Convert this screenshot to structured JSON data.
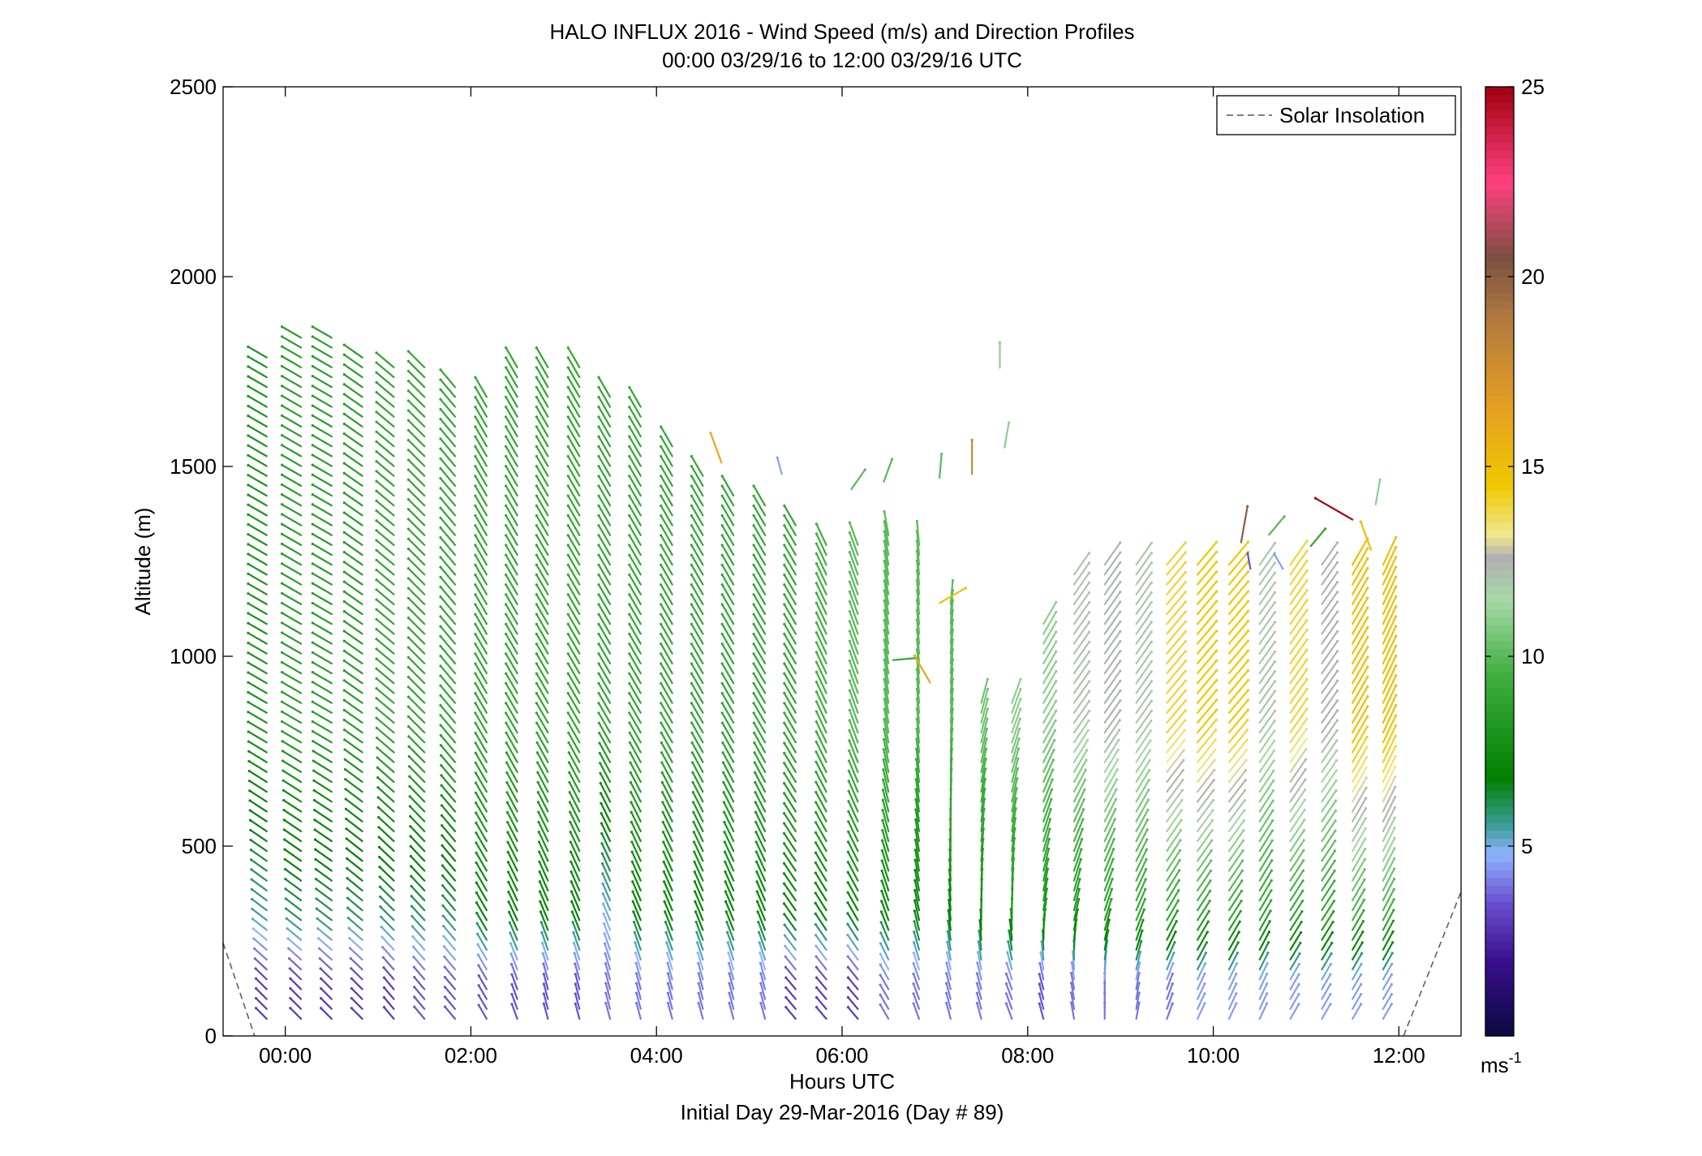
{
  "chart_data": {
    "type": "scatter",
    "title": "HALO INFLUX 2016 - Wind Speed (m/s) and Direction Profiles",
    "subtitle": "00:00 03/29/16 to 12:00 03/29/16  UTC",
    "xlabel": "Hours UTC",
    "xlabel2": "Initial Day 29-Mar-2016 (Day # 89)",
    "ylabel": "Altitude (m)",
    "xlim": [
      -0.67,
      12.67
    ],
    "ylim": [
      0,
      2500
    ],
    "x_ticks": [
      {
        "value": 0,
        "label": "00:00"
      },
      {
        "value": 2,
        "label": "02:00"
      },
      {
        "value": 4,
        "label": "04:00"
      },
      {
        "value": 6,
        "label": "06:00"
      },
      {
        "value": 8,
        "label": "08:00"
      },
      {
        "value": 10,
        "label": "10:00"
      },
      {
        "value": 12,
        "label": "12:00"
      }
    ],
    "y_ticks": [
      {
        "value": 0,
        "label": "0"
      },
      {
        "value": 500,
        "label": "500"
      },
      {
        "value": 1000,
        "label": "1000"
      },
      {
        "value": 1500,
        "label": "1500"
      },
      {
        "value": 2000,
        "label": "2000"
      },
      {
        "value": 2500,
        "label": "2500"
      }
    ],
    "legend": {
      "label": "Solar Insolation",
      "style": "dashed",
      "color": "#808080",
      "placement": "top-right"
    },
    "colorbar": {
      "range": [
        0,
        25
      ],
      "ticks": [
        {
          "value": 5,
          "label": "5"
        },
        {
          "value": 10,
          "label": "10"
        },
        {
          "value": 15,
          "label": "15"
        },
        {
          "value": 20,
          "label": "20"
        },
        {
          "value": 25,
          "label": "25"
        }
      ],
      "unit_label": "ms",
      "unit_exp": "-1",
      "stops": [
        {
          "value": 0,
          "color": "#0a0a40"
        },
        {
          "value": 2,
          "color": "#3a0f8f"
        },
        {
          "value": 3.5,
          "color": "#6a4fd0"
        },
        {
          "value": 4.8,
          "color": "#8fb4ff"
        },
        {
          "value": 5.5,
          "color": "#3f9e9e"
        },
        {
          "value": 6.8,
          "color": "#008000"
        },
        {
          "value": 9.5,
          "color": "#3fae3f"
        },
        {
          "value": 11.5,
          "color": "#a8d8a8"
        },
        {
          "value": 12.6,
          "color": "#b0b0b0"
        },
        {
          "value": 13.2,
          "color": "#f0e890"
        },
        {
          "value": 14.5,
          "color": "#f0c800"
        },
        {
          "value": 16.5,
          "color": "#e6a020"
        },
        {
          "value": 19,
          "color": "#b07840"
        },
        {
          "value": 20.5,
          "color": "#7a5040"
        },
        {
          "value": 22.5,
          "color": "#ff4080"
        },
        {
          "value": 25,
          "color": "#a00010"
        }
      ]
    },
    "solar_insolation": [
      {
        "x": -0.67,
        "y": 245
      },
      {
        "x": -0.33,
        "y": 0
      },
      {
        "x": 12.05,
        "y": 0
      },
      {
        "x": 12.67,
        "y": 380
      }
    ],
    "profiles": [
      {
        "time": -0.2,
        "top": 1810,
        "speed_low": 3,
        "speed_mid": 5.5,
        "speed_high": 8,
        "dir_low": 315,
        "dir_high": 300
      },
      {
        "time": 0.17,
        "top": 1860,
        "speed_low": 3,
        "speed_mid": 6,
        "speed_high": 8.5,
        "dir_low": 315,
        "dir_high": 300
      },
      {
        "time": 0.5,
        "top": 1850,
        "speed_low": 3,
        "speed_mid": 6,
        "speed_high": 8.5,
        "dir_low": 315,
        "dir_high": 300
      },
      {
        "time": 0.83,
        "top": 1790,
        "speed_low": 3,
        "speed_mid": 6,
        "speed_high": 8.5,
        "dir_low": 315,
        "dir_high": 305
      },
      {
        "time": 1.17,
        "top": 1780,
        "speed_low": 3,
        "speed_mid": 6,
        "speed_high": 9,
        "dir_low": 320,
        "dir_high": 310
      },
      {
        "time": 1.5,
        "top": 1770,
        "speed_low": 3.5,
        "speed_mid": 6,
        "speed_high": 9,
        "dir_low": 320,
        "dir_high": 315
      },
      {
        "time": 1.83,
        "top": 1710,
        "speed_low": 3.5,
        "speed_mid": 6,
        "speed_high": 9,
        "dir_low": 320,
        "dir_high": 320
      },
      {
        "time": 2.17,
        "top": 1700,
        "speed_low": 3.5,
        "speed_mid": 7,
        "speed_high": 9,
        "dir_low": 330,
        "dir_high": 330
      },
      {
        "time": 2.5,
        "top": 1770,
        "speed_low": 3.5,
        "speed_mid": 7,
        "speed_high": 9,
        "dir_low": 340,
        "dir_high": 330
      },
      {
        "time": 2.83,
        "top": 1780,
        "speed_low": 3.5,
        "speed_mid": 7,
        "speed_high": 9,
        "dir_low": 345,
        "dir_high": 330
      },
      {
        "time": 3.17,
        "top": 1780,
        "speed_low": 3.5,
        "speed_mid": 7,
        "speed_high": 9,
        "dir_low": 345,
        "dir_high": 330
      },
      {
        "time": 3.5,
        "top": 1700,
        "speed_low": 4,
        "speed_mid": 5,
        "speed_high": 9,
        "dir_low": 345,
        "dir_high": 330
      },
      {
        "time": 3.83,
        "top": 1660,
        "speed_low": 4,
        "speed_mid": 7,
        "speed_high": 9,
        "dir_low": 345,
        "dir_high": 330
      },
      {
        "time": 4.17,
        "top": 1560,
        "speed_low": 4,
        "speed_mid": 7,
        "speed_high": 9,
        "dir_low": 345,
        "dir_high": 330
      },
      {
        "time": 4.5,
        "top": 1480,
        "speed_low": 4,
        "speed_mid": 7,
        "speed_high": 9,
        "dir_low": 345,
        "dir_high": 330
      },
      {
        "time": 4.83,
        "top": 1440,
        "speed_low": 4,
        "speed_mid": 7,
        "speed_high": 9,
        "dir_low": 345,
        "dir_high": 330
      },
      {
        "time": 5.17,
        "top": 1420,
        "speed_low": 4,
        "speed_mid": 7,
        "speed_high": 9,
        "dir_low": 345,
        "dir_high": 330
      },
      {
        "time": 5.5,
        "top": 1350,
        "speed_low": 3,
        "speed_mid": 7,
        "speed_high": 9,
        "dir_low": 320,
        "dir_high": 330
      },
      {
        "time": 5.83,
        "top": 1310,
        "speed_low": 3,
        "speed_mid": 7,
        "speed_high": 9.5,
        "dir_low": 320,
        "dir_high": 335
      },
      {
        "time": 6.17,
        "top": 1300,
        "speed_low": 3,
        "speed_mid": 7,
        "speed_high": 10,
        "dir_low": 320,
        "dir_high": 340
      },
      {
        "time": 6.5,
        "top": 1320,
        "speed_low": 4,
        "speed_mid": 7,
        "speed_high": 10,
        "dir_low": 330,
        "dir_high": 350
      },
      {
        "time": 6.83,
        "top": 1300,
        "speed_low": 4,
        "speed_mid": 7,
        "speed_high": 10,
        "dir_low": 340,
        "dir_high": 355
      },
      {
        "time": 7.17,
        "top": 1150,
        "speed_low": 4,
        "speed_mid": 7,
        "speed_high": 10,
        "dir_low": 345,
        "dir_high": 5
      },
      {
        "time": 7.5,
        "top": 880,
        "speed_low": 4,
        "speed_mid": 7.5,
        "speed_high": 10.5,
        "dir_low": 345,
        "dir_high": 15
      },
      {
        "time": 7.83,
        "top": 900,
        "speed_low": 4,
        "speed_mid": 8,
        "speed_high": 11,
        "dir_low": 340,
        "dir_high": 20
      },
      {
        "time": 8.17,
        "top": 1100,
        "speed_low": 3.5,
        "speed_mid": 8,
        "speed_high": 11,
        "dir_low": 345,
        "dir_high": 30
      },
      {
        "time": 8.5,
        "top": 1240,
        "speed_low": 4,
        "speed_mid": 8,
        "speed_high": 12,
        "dir_low": 350,
        "dir_high": 35
      },
      {
        "time": 8.83,
        "top": 1250,
        "speed_low": 4,
        "speed_mid": 8.5,
        "speed_high": 12.5,
        "dir_low": 0,
        "dir_high": 35
      },
      {
        "time": 9.17,
        "top": 1250,
        "speed_low": 4,
        "speed_mid": 9,
        "speed_high": 12,
        "dir_low": 10,
        "dir_high": 35
      },
      {
        "time": 9.5,
        "top": 1250,
        "speed_low": 4,
        "speed_mid": 9,
        "speed_high": 14,
        "dir_low": 20,
        "dir_high": 40
      },
      {
        "time": 9.83,
        "top": 1250,
        "speed_low": 4.5,
        "speed_mid": 9,
        "speed_high": 14.5,
        "dir_low": 25,
        "dir_high": 40
      },
      {
        "time": 10.17,
        "top": 1260,
        "speed_low": 4.5,
        "speed_mid": 9,
        "speed_high": 14.5,
        "dir_low": 25,
        "dir_high": 40
      },
      {
        "time": 10.5,
        "top": 1250,
        "speed_low": 4.5,
        "speed_mid": 9,
        "speed_high": 12,
        "dir_low": 25,
        "dir_high": 35
      },
      {
        "time": 10.83,
        "top": 1250,
        "speed_low": 4.5,
        "speed_mid": 9,
        "speed_high": 14,
        "dir_low": 30,
        "dir_high": 35
      },
      {
        "time": 11.17,
        "top": 1250,
        "speed_low": 4.5,
        "speed_mid": 9,
        "speed_high": 12.5,
        "dir_low": 30,
        "dir_high": 35
      },
      {
        "time": 11.5,
        "top": 1250,
        "speed_low": 4.5,
        "speed_mid": 9.5,
        "speed_high": 15,
        "dir_low": 30,
        "dir_high": 30
      },
      {
        "time": 11.83,
        "top": 1250,
        "speed_low": 4.5,
        "speed_mid": 9.5,
        "speed_high": 15,
        "dir_low": 30,
        "dir_high": 25
      }
    ],
    "scattered_barbs": [
      {
        "time": 4.7,
        "alt": 1510,
        "speed": 16,
        "dir": 340
      },
      {
        "time": 5.35,
        "alt": 1480,
        "speed": 4.5,
        "dir": 345
      },
      {
        "time": 6.1,
        "alt": 1440,
        "speed": 10,
        "dir": 35
      },
      {
        "time": 6.45,
        "alt": 1460,
        "speed": 10,
        "dir": 20
      },
      {
        "time": 7.05,
        "alt": 1470,
        "speed": 10,
        "dir": 5
      },
      {
        "time": 7.4,
        "alt": 1480,
        "speed": 18,
        "dir": 0
      },
      {
        "time": 7.75,
        "alt": 1550,
        "speed": 11,
        "dir": 10
      },
      {
        "time": 7.7,
        "alt": 1760,
        "speed": 11,
        "dir": 0
      },
      {
        "time": 7.05,
        "alt": 1140,
        "speed": 15,
        "dir": 60
      },
      {
        "time": 6.55,
        "alt": 990,
        "speed": 9,
        "dir": 85
      },
      {
        "time": 6.95,
        "alt": 930,
        "speed": 16,
        "dir": 330
      },
      {
        "time": 10.3,
        "alt": 1300,
        "speed": 20,
        "dir": 10
      },
      {
        "time": 10.6,
        "alt": 1320,
        "speed": 10,
        "dir": 40
      },
      {
        "time": 10.4,
        "alt": 1230,
        "speed": 3.5,
        "dir": 350
      },
      {
        "time": 10.75,
        "alt": 1230,
        "speed": 4.5,
        "dir": 330
      },
      {
        "time": 11.05,
        "alt": 1290,
        "speed": 9,
        "dir": 40
      },
      {
        "time": 11.5,
        "alt": 1360,
        "speed": 25,
        "dir": 300
      },
      {
        "time": 11.75,
        "alt": 1400,
        "speed": 11,
        "dir": 10
      },
      {
        "time": 11.7,
        "alt": 1280,
        "speed": 15,
        "dir": 340
      }
    ]
  }
}
